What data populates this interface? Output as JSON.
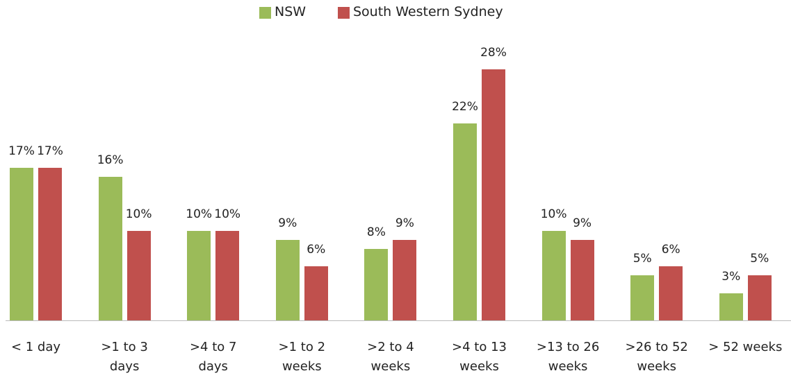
{
  "chart_data": {
    "type": "bar",
    "categories": [
      "< 1 day",
      ">1 to 3 days",
      ">4 to 7 days",
      ">1 to 2 weeks",
      ">2 to 4 weeks",
      ">4 to 13 weeks",
      ">13 to 26 weeks",
      ">26 to 52 weeks",
      "> 52 weeks"
    ],
    "series": [
      {
        "name": "NSW",
        "color": "#9bbb59",
        "values": [
          17,
          16,
          10,
          9,
          8,
          22,
          10,
          5,
          3
        ],
        "value_labels": [
          "17%",
          "16%",
          "10%",
          "9%",
          "8%",
          "22%",
          "10%",
          "5%",
          "3%"
        ]
      },
      {
        "name": "South Western Sydney",
        "color": "#c0504d",
        "values": [
          17,
          10,
          10,
          6,
          9,
          28,
          9,
          6,
          5
        ],
        "value_labels": [
          "17%",
          "10%",
          "10%",
          "6%",
          "9%",
          "28%",
          "9%",
          "6%",
          "5%"
        ]
      }
    ],
    "legend": "top"
  }
}
